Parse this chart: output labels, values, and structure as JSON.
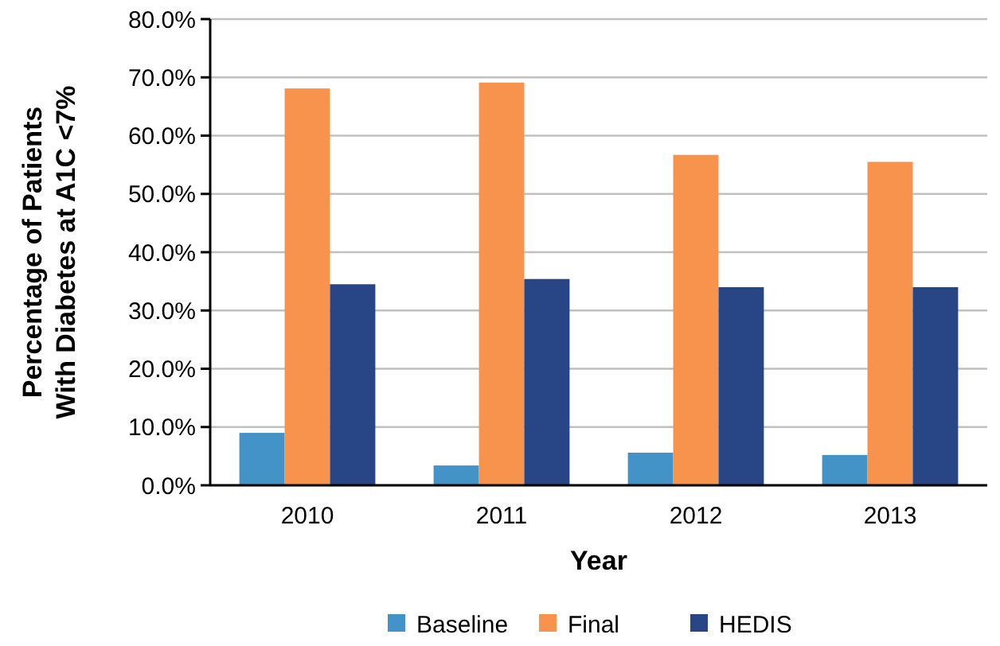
{
  "chart_data": {
    "type": "bar",
    "xlabel": "Year",
    "ylabel": "Percentage of Patients With Diabetes at A1C <7%",
    "categories": [
      "2010",
      "2011",
      "2012",
      "2013"
    ],
    "series": [
      {
        "name": "Baseline",
        "color": "#4393c8",
        "values": [
          9.0,
          3.4,
          5.6,
          5.2
        ]
      },
      {
        "name": "Final",
        "color": "#f7934d",
        "values": [
          68.1,
          69.1,
          56.7,
          55.5
        ]
      },
      {
        "name": "HEDIS",
        "color": "#284585",
        "values": [
          34.5,
          35.4,
          34.0,
          34.0
        ]
      }
    ],
    "ylim": [
      0,
      80
    ],
    "yticks": [
      {
        "value": 0,
        "label": "0.0%"
      },
      {
        "value": 10,
        "label": "10.0%"
      },
      {
        "value": 20,
        "label": "20.0%"
      },
      {
        "value": 30,
        "label": "30.0%"
      },
      {
        "value": 40,
        "label": "40.0%"
      },
      {
        "value": 50,
        "label": "50.0%"
      },
      {
        "value": 60,
        "label": "60.0%"
      },
      {
        "value": 70,
        "label": "70.0%"
      },
      {
        "value": 80,
        "label": "80.0%"
      }
    ],
    "grid": "y",
    "legend": "bottom"
  }
}
